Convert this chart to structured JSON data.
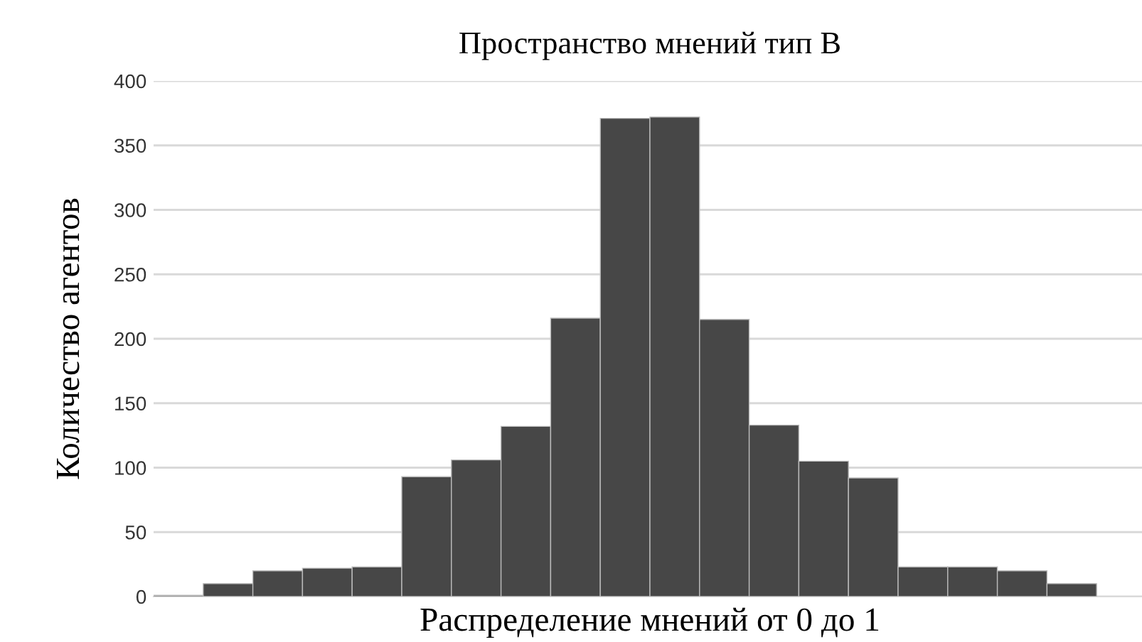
{
  "chart_data": {
    "type": "bar",
    "title": "Пространство мнений тип В",
    "xlabel": "Распределение мнений от 0 до 1",
    "ylabel": "Количество агентов",
    "categories": [
      null,
      null,
      null,
      null,
      null,
      null,
      null,
      null,
      null,
      null,
      null,
      null,
      null,
      null,
      null,
      null,
      null,
      null,
      null,
      null
    ],
    "values": [
      1,
      10,
      20,
      22,
      23,
      93,
      106,
      132,
      216,
      371,
      372,
      215,
      133,
      105,
      92,
      23,
      23,
      20,
      10,
      null
    ],
    "color": "#474747",
    "ylim": [
      0,
      400
    ],
    "yticks": [
      0,
      50,
      100,
      150,
      200,
      250,
      300,
      350,
      400
    ],
    "grid": "y",
    "legend": false
  }
}
